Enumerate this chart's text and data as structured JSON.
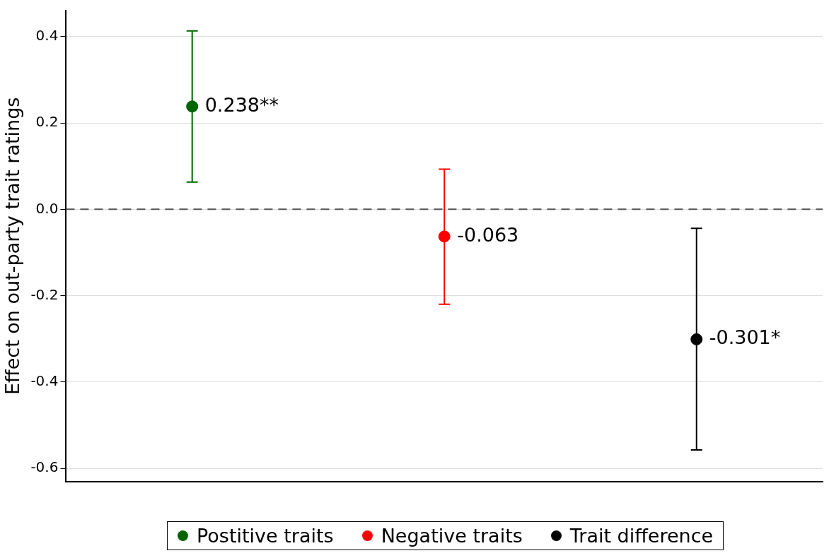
{
  "chart_data": {
    "type": "scatter",
    "ylabel": "Effect on out-party trait ratings",
    "categories": [
      null,
      null,
      null
    ],
    "series": [
      {
        "name": "Postitive traits",
        "color": "#006400",
        "values": [
          0.238,
          null,
          null
        ],
        "errors": [
          [
            0.063,
            0.413
          ],
          null,
          null
        ],
        "value_labels": [
          "0.238**",
          null,
          null
        ]
      },
      {
        "name": "Negative traits",
        "color": "#ff0000",
        "values": [
          null,
          -0.063,
          null
        ],
        "errors": [
          null,
          [
            -0.22,
            0.093
          ],
          null
        ],
        "value_labels": [
          null,
          "-0.063",
          null
        ]
      },
      {
        "name": "Trait difference",
        "color": "#000000",
        "values": [
          null,
          null,
          -0.301
        ],
        "errors": [
          null,
          null,
          [
            -0.557,
            -0.044
          ]
        ],
        "value_labels": [
          null,
          null,
          "-0.301*"
        ]
      }
    ],
    "ylim": [
      -0.63,
      0.46
    ],
    "yticks": [
      {
        "value": -0.6,
        "label": "-0.6"
      },
      {
        "value": -0.4,
        "label": "-0.4"
      },
      {
        "value": -0.2,
        "label": "-0.2"
      },
      {
        "value": 0,
        "label": "0.0"
      },
      {
        "value": 0.2,
        "label": "0.2"
      },
      {
        "value": 0.4,
        "label": "0.4"
      }
    ],
    "grid": "y",
    "marker": "circle",
    "legend": "bottom",
    "ref_lines": [
      {
        "axis": "y",
        "value": 0,
        "line_style": "dashed",
        "color": "#555555"
      }
    ]
  }
}
